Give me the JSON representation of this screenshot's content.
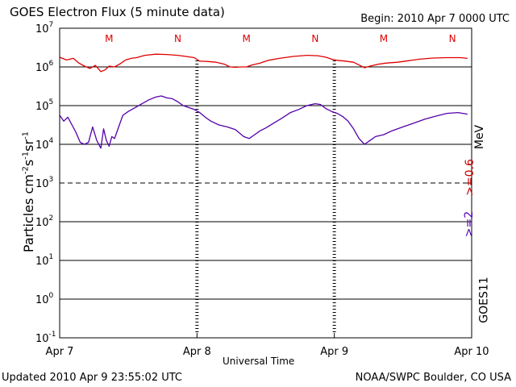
{
  "header": {
    "title": "GOES Electron Flux (5 minute data)",
    "begin": "Begin: 2010 Apr 7 0000 UTC"
  },
  "footer": {
    "updated": "Updated 2010 Apr  9 23:55:02 UTC",
    "credit": "NOAA/SWPC Boulder, CO USA"
  },
  "right_labels": {
    "satellite": "GOES11",
    "energy_high": ">=2",
    "energy_low": ">=0.6",
    "unit": "MeV"
  },
  "colors": {
    "low_energy": "#e00000",
    "high_energy": "#5500aa",
    "grid": "#000000",
    "mn_marks": "#dd0000"
  },
  "chart_data": {
    "type": "line",
    "title": "GOES Electron Flux (5 minute data)",
    "xlabel": "Universal Time",
    "ylabel": "Particles cm-2s-1sr-1",
    "yscale": "log",
    "ylim_exp": [
      -1,
      7
    ],
    "xlim_days": [
      0,
      3
    ],
    "x_ticks": [
      {
        "day": 0,
        "label": "Apr 7"
      },
      {
        "day": 1,
        "label": "Apr 8"
      },
      {
        "day": 2,
        "label": "Apr 9"
      },
      {
        "day": 3,
        "label": "Apr 10"
      }
    ],
    "y_ticks": [
      {
        "exp": 7,
        "label": "10",
        "sup": "7"
      },
      {
        "exp": 6,
        "label": "10",
        "sup": "6"
      },
      {
        "exp": 5,
        "label": "10",
        "sup": "5"
      },
      {
        "exp": 4,
        "label": "10",
        "sup": "4"
      },
      {
        "exp": 3,
        "label": "10",
        "sup": "3"
      },
      {
        "exp": 2,
        "label": "10",
        "sup": "2"
      },
      {
        "exp": 1,
        "label": "10",
        "sup": "1"
      },
      {
        "exp": 0,
        "label": "10",
        "sup": "0"
      },
      {
        "exp": -1,
        "label": "10",
        "sup": "-1"
      }
    ],
    "threshold_exp": 3,
    "solid_grid_exps": [
      6,
      5,
      4,
      2,
      1,
      0
    ],
    "mn_markers": [
      {
        "label": "M",
        "day": 0.36
      },
      {
        "label": "N",
        "day": 0.86
      },
      {
        "label": "M",
        "day": 1.36
      },
      {
        "label": "N",
        "day": 1.86
      },
      {
        "label": "M",
        "day": 2.36
      },
      {
        "label": "N",
        "day": 2.86
      }
    ],
    "series": [
      {
        "name": ">=0.6 MeV",
        "color": "#e00000",
        "points": [
          [
            0.0,
            6.25
          ],
          [
            0.05,
            6.18
          ],
          [
            0.1,
            6.22
          ],
          [
            0.14,
            6.1
          ],
          [
            0.18,
            6.02
          ],
          [
            0.22,
            5.96
          ],
          [
            0.26,
            6.04
          ],
          [
            0.3,
            5.88
          ],
          [
            0.33,
            5.92
          ],
          [
            0.36,
            6.02
          ],
          [
            0.4,
            6.0
          ],
          [
            0.44,
            6.08
          ],
          [
            0.48,
            6.18
          ],
          [
            0.52,
            6.22
          ],
          [
            0.56,
            6.24
          ],
          [
            0.62,
            6.3
          ],
          [
            0.7,
            6.33
          ],
          [
            0.78,
            6.32
          ],
          [
            0.86,
            6.3
          ],
          [
            0.92,
            6.27
          ],
          [
            0.98,
            6.24
          ],
          [
            1.02,
            6.15
          ],
          [
            1.08,
            6.14
          ],
          [
            1.14,
            6.12
          ],
          [
            1.2,
            6.07
          ],
          [
            1.24,
            6.0
          ],
          [
            1.28,
            5.99
          ],
          [
            1.32,
            6.0
          ],
          [
            1.36,
            6.0
          ],
          [
            1.4,
            6.05
          ],
          [
            1.46,
            6.1
          ],
          [
            1.52,
            6.17
          ],
          [
            1.6,
            6.22
          ],
          [
            1.7,
            6.27
          ],
          [
            1.8,
            6.3
          ],
          [
            1.88,
            6.29
          ],
          [
            1.94,
            6.25
          ],
          [
            1.98,
            6.2
          ],
          [
            2.02,
            6.17
          ],
          [
            2.08,
            6.15
          ],
          [
            2.14,
            6.12
          ],
          [
            2.18,
            6.05
          ],
          [
            2.22,
            5.98
          ],
          [
            2.26,
            6.02
          ],
          [
            2.32,
            6.07
          ],
          [
            2.38,
            6.1
          ],
          [
            2.46,
            6.12
          ],
          [
            2.54,
            6.16
          ],
          [
            2.62,
            6.2
          ],
          [
            2.72,
            6.23
          ],
          [
            2.82,
            6.24
          ],
          [
            2.92,
            6.24
          ],
          [
            2.97,
            6.22
          ]
        ]
      },
      {
        "name": ">=2 MeV",
        "color": "#5500aa",
        "points": [
          [
            0.0,
            4.75
          ],
          [
            0.03,
            4.6
          ],
          [
            0.06,
            4.7
          ],
          [
            0.09,
            4.5
          ],
          [
            0.12,
            4.3
          ],
          [
            0.15,
            4.05
          ],
          [
            0.18,
            4.0
          ],
          [
            0.21,
            4.05
          ],
          [
            0.24,
            4.45
          ],
          [
            0.27,
            4.1
          ],
          [
            0.3,
            3.9
          ],
          [
            0.32,
            4.4
          ],
          [
            0.34,
            4.1
          ],
          [
            0.36,
            3.95
          ],
          [
            0.38,
            4.2
          ],
          [
            0.4,
            4.15
          ],
          [
            0.43,
            4.45
          ],
          [
            0.46,
            4.75
          ],
          [
            0.5,
            4.85
          ],
          [
            0.55,
            4.95
          ],
          [
            0.6,
            5.05
          ],
          [
            0.65,
            5.15
          ],
          [
            0.7,
            5.22
          ],
          [
            0.74,
            5.25
          ],
          [
            0.78,
            5.2
          ],
          [
            0.82,
            5.18
          ],
          [
            0.86,
            5.1
          ],
          [
            0.9,
            5.0
          ],
          [
            0.94,
            4.95
          ],
          [
            0.98,
            4.9
          ],
          [
            1.02,
            4.82
          ],
          [
            1.06,
            4.7
          ],
          [
            1.1,
            4.6
          ],
          [
            1.16,
            4.5
          ],
          [
            1.22,
            4.45
          ],
          [
            1.28,
            4.38
          ],
          [
            1.34,
            4.2
          ],
          [
            1.38,
            4.15
          ],
          [
            1.42,
            4.25
          ],
          [
            1.46,
            4.35
          ],
          [
            1.5,
            4.42
          ],
          [
            1.56,
            4.55
          ],
          [
            1.62,
            4.68
          ],
          [
            1.68,
            4.82
          ],
          [
            1.74,
            4.9
          ],
          [
            1.8,
            5.0
          ],
          [
            1.86,
            5.05
          ],
          [
            1.9,
            5.03
          ],
          [
            1.94,
            4.92
          ],
          [
            1.98,
            4.85
          ],
          [
            2.02,
            4.8
          ],
          [
            2.06,
            4.72
          ],
          [
            2.1,
            4.6
          ],
          [
            2.14,
            4.4
          ],
          [
            2.18,
            4.15
          ],
          [
            2.22,
            4.0
          ],
          [
            2.26,
            4.1
          ],
          [
            2.3,
            4.2
          ],
          [
            2.36,
            4.25
          ],
          [
            2.42,
            4.35
          ],
          [
            2.5,
            4.45
          ],
          [
            2.58,
            4.55
          ],
          [
            2.66,
            4.65
          ],
          [
            2.74,
            4.73
          ],
          [
            2.82,
            4.8
          ],
          [
            2.9,
            4.82
          ],
          [
            2.97,
            4.78
          ]
        ]
      }
    ]
  }
}
